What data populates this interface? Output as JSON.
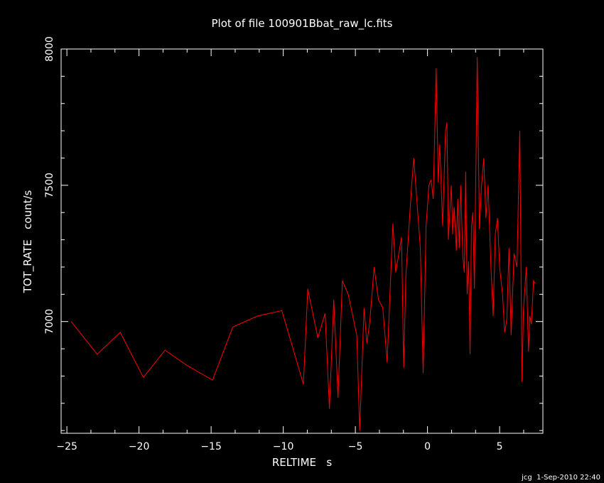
{
  "colors": {
    "background": "#000000",
    "axes": "#ffffff",
    "line": "#ff0000"
  },
  "footer": "jcg  1-Sep-2010 22:40",
  "chart_data": {
    "type": "line",
    "title": "Plot of file 100901Bbat_raw_lc.fits",
    "xlabel": "RELTIME   s",
    "ylabel": "TOT_RATE   count/s",
    "xlim": [
      -25.4,
      8.0
    ],
    "ylim": [
      6590,
      8000
    ],
    "xticks": [
      -25,
      -20,
      -15,
      -10,
      -5,
      0,
      5
    ],
    "xtick_labels": [
      "−25",
      "−20",
      "−15",
      "−10",
      "−5",
      "0",
      "5"
    ],
    "yticks": [
      7000,
      7500,
      8000
    ],
    "ytick_labels": [
      "7000",
      "7500",
      "8000"
    ],
    "grid": false,
    "series": [
      {
        "color": "#ff0000",
        "x": [
          -24.7,
          -22.9,
          -21.3,
          -19.7,
          -18.2,
          -16.7,
          -14.9,
          -13.5,
          -11.8,
          -10.1,
          -8.6,
          -8.3,
          -7.6,
          -7.1,
          -6.8,
          -6.5,
          -6.2,
          -5.9,
          -5.5,
          -4.9,
          -4.7,
          -4.4,
          -4.2,
          -4.0,
          -3.7,
          -3.4,
          -3.1,
          -2.8,
          -2.4,
          -2.2,
          -1.8,
          -1.65,
          -1.5,
          -1.1,
          -0.95,
          -0.5,
          -0.3,
          -0.1,
          0.1,
          0.25,
          0.4,
          0.6,
          0.75,
          0.85,
          1.05,
          1.25,
          1.35,
          1.45,
          1.65,
          1.75,
          1.85,
          2.0,
          2.1,
          2.2,
          2.3,
          2.45,
          2.55,
          2.65,
          2.75,
          2.85,
          2.95,
          3.05,
          3.15,
          3.25,
          3.35,
          3.45,
          3.6,
          3.75,
          3.9,
          4.05,
          4.2,
          4.4,
          4.55,
          4.7,
          4.85,
          5.0,
          5.2,
          5.35,
          5.5,
          5.65,
          5.8,
          6.0,
          6.2,
          6.4,
          6.55,
          6.65,
          6.85,
          7.0,
          7.1,
          7.2,
          7.35,
          7.45
        ],
        "y": [
          7000,
          6880,
          6960,
          6795,
          6895,
          6840,
          6785,
          6980,
          7020,
          7040,
          6770,
          7120,
          6940,
          7030,
          6680,
          7080,
          6720,
          7150,
          7100,
          6950,
          6600,
          7050,
          6920,
          7000,
          7200,
          7080,
          7050,
          6850,
          7360,
          7180,
          7310,
          6830,
          7170,
          7500,
          7600,
          7270,
          6810,
          7350,
          7500,
          7520,
          7450,
          7930,
          7510,
          7650,
          7350,
          7700,
          7730,
          7300,
          7500,
          7320,
          7420,
          7260,
          7450,
          7270,
          7500,
          7240,
          7180,
          7550,
          7100,
          7220,
          6880,
          7350,
          7400,
          7120,
          7540,
          7970,
          7340,
          7500,
          7600,
          7380,
          7500,
          7200,
          7020,
          7320,
          7380,
          7200,
          7100,
          6960,
          7010,
          7270,
          6950,
          7250,
          7200,
          7700,
          6780,
          7040,
          7200,
          6890,
          7020,
          6990,
          7150,
          7140
        ]
      }
    ]
  }
}
